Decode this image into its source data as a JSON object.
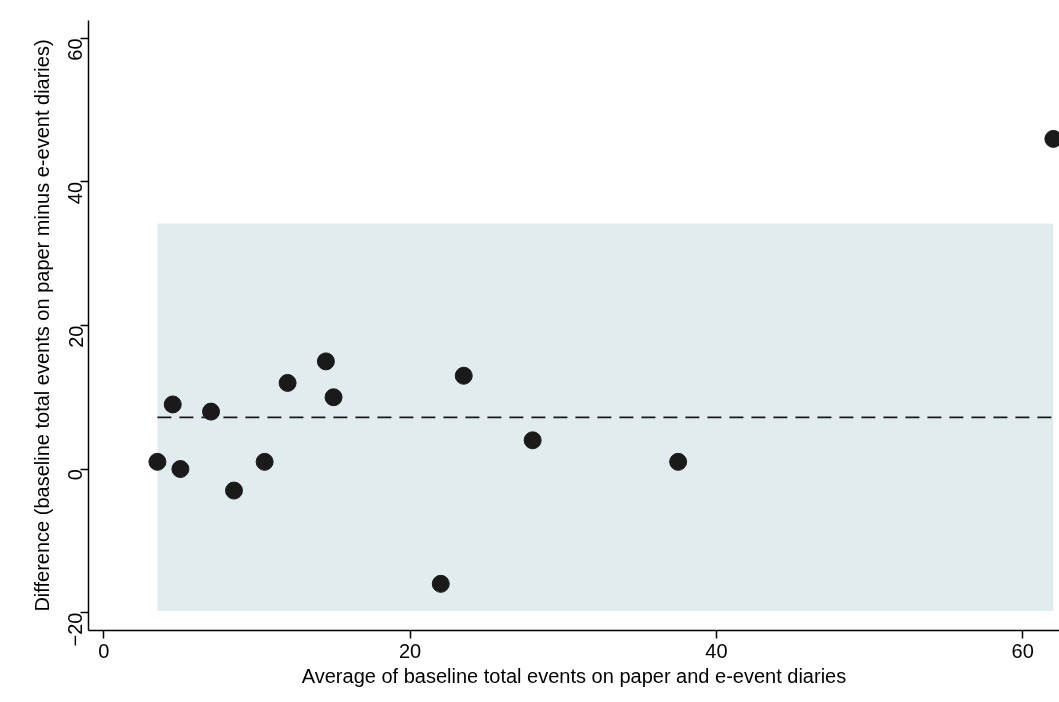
{
  "chart_data": {
    "type": "scatter",
    "xlabel": "Average of baseline total events on paper and e-event diaries",
    "ylabel": "Difference (baseline total events on paper minus e-event diaries)",
    "x": [
      3.5,
      4.5,
      5,
      7,
      8.5,
      10.5,
      12,
      14.5,
      15,
      22,
      23.5,
      28,
      37.5,
      62
    ],
    "series": [
      {
        "color": "#1a1a1a",
        "values": [
          1,
          9,
          0,
          8,
          -3,
          1,
          12,
          15,
          10,
          -16,
          13,
          4,
          1,
          46
        ]
      }
    ],
    "marker": "circle",
    "xlim": [
      -1,
      62.4
    ],
    "ylim": [
      -22.5,
      62.5
    ],
    "xticks": [
      0,
      20,
      40,
      60
    ],
    "yticks": [
      -20,
      0,
      20,
      40,
      60
    ],
    "ref_lines": [
      {
        "axis": "y",
        "value": 7.2,
        "color": "#1a1a1a",
        "line_style": "dashed"
      }
    ],
    "bands": [
      {
        "axis": "y",
        "from": -19.8,
        "to": 34.2,
        "color": "#e1ecef"
      }
    ],
    "grid": false
  }
}
